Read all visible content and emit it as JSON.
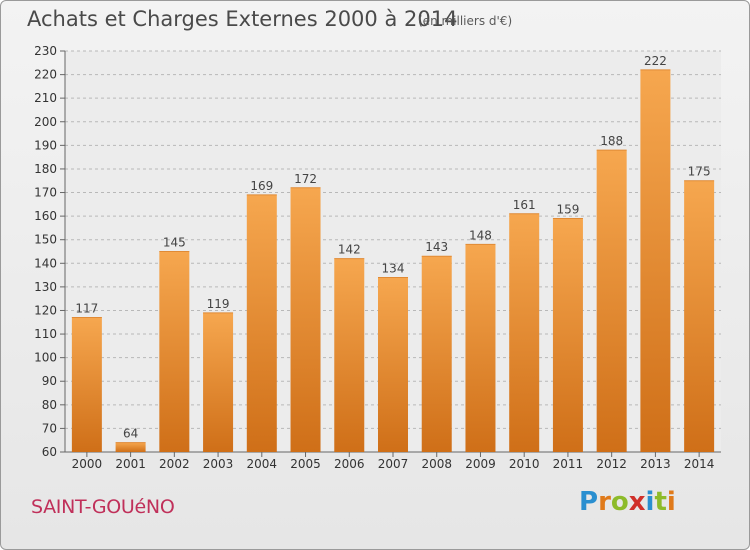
{
  "header": {
    "title": "Achats et Charges Externes 2000 à 2014",
    "subtitle": "(en milliers d'€)"
  },
  "commune": "SAINT-GOUéNO",
  "logo": {
    "text": "Proxiti",
    "letters": [
      {
        "char": "P",
        "color": "#2a8fd0"
      },
      {
        "char": "r",
        "color": "#e07a1a"
      },
      {
        "char": "o",
        "color": "#8dbb2a"
      },
      {
        "char": "x",
        "color": "#d0302a"
      },
      {
        "char": "i",
        "color": "#2a8fd0"
      },
      {
        "char": "t",
        "color": "#8dbb2a"
      },
      {
        "char": "i",
        "color": "#e07a1a"
      }
    ]
  },
  "colors": {
    "bar_top": "#f6a74f",
    "bar_bottom": "#cf6f18",
    "grid": "#b8b8b8",
    "plot_bg": "#ececec"
  },
  "chart_data": {
    "type": "bar",
    "categories": [
      "2000",
      "2001",
      "2002",
      "2003",
      "2004",
      "2005",
      "2006",
      "2007",
      "2008",
      "2009",
      "2010",
      "2011",
      "2012",
      "2013",
      "2014"
    ],
    "values": [
      117,
      64,
      145,
      119,
      169,
      172,
      142,
      134,
      143,
      148,
      161,
      159,
      188,
      222,
      175
    ],
    "value_labels": [
      "117",
      "64",
      "145",
      "119",
      "169",
      "172",
      "142",
      "134",
      "143",
      "148",
      "161",
      "159",
      "188",
      "222",
      "175"
    ],
    "ylim": [
      60,
      230
    ],
    "yticks": [
      60,
      70,
      80,
      90,
      100,
      110,
      120,
      130,
      140,
      150,
      160,
      170,
      180,
      190,
      200,
      210,
      220,
      230
    ],
    "ytick_labels": [
      "60",
      "70",
      "80",
      "90",
      "100",
      "110",
      "120",
      "130",
      "140",
      "150",
      "160",
      "170",
      "180",
      "190",
      "200",
      "210",
      "220",
      "230"
    ],
    "grid": true,
    "title": "Achats et Charges Externes 2000 à 2014",
    "xlabel": "",
    "ylabel": ""
  }
}
